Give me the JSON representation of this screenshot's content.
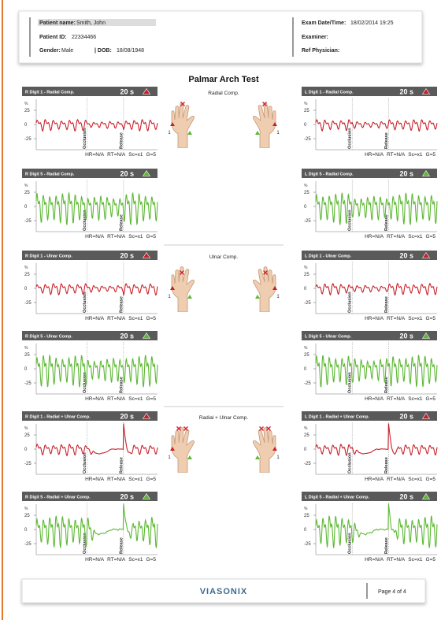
{
  "header": {
    "patient_name_label": "Patient name:",
    "patient_name": "Smith, John",
    "patient_id_label": "Patient ID:",
    "patient_id": "22334466",
    "gender_label": "Gender:",
    "gender": "Male",
    "dob_label": "| DOB:",
    "dob": "18/08/1948",
    "exam_label": "Exam Date/Time:",
    "exam": "18/02/2014 19:25",
    "examiner_label": "Examiner:",
    "ref_label": "Ref Physician:"
  },
  "title": "Palmar Arch Test",
  "panel_common": {
    "duration": "20 s",
    "unit": "%",
    "yticks": [
      25,
      0,
      -25
    ],
    "occlusion": "Occlusion",
    "release": "Release",
    "hr": "HR=N/A",
    "rt": "RT=N/A",
    "sc": "Sc=x1",
    "g": "G=5"
  },
  "compressions": [
    {
      "label": "Radial Comp.",
      "digit": "1"
    },
    {
      "label": "Ulnar Comp.",
      "digit": "1"
    },
    {
      "label": "Radial + Ulnar Comp.",
      "digit": "1"
    }
  ],
  "panels": [
    {
      "title": "R Digit 1 - Radial Comp.",
      "color": "#c8202a"
    },
    {
      "title": "L Digit 1 - Radial Comp.",
      "color": "#c8202a"
    },
    {
      "title": "R Digit 5 - Radial Comp.",
      "color": "#5cb833"
    },
    {
      "title": "L Digit 5 - Radial Comp.",
      "color": "#5cb833"
    },
    {
      "title": "R Digit 1 - Ulnar Comp.",
      "color": "#c8202a"
    },
    {
      "title": "L Digit 1 - Ulnar Comp.",
      "color": "#c8202a"
    },
    {
      "title": "R Digit 5 - Ulnar Comp.",
      "color": "#5cb833"
    },
    {
      "title": "L Digit 5 - Ulnar Comp.",
      "color": "#5cb833"
    },
    {
      "title": "R Digit 1 - Radial + Ulnar Comp.",
      "color": "#c8202a"
    },
    {
      "title": "L Digit 1 - Radial + Ulnar Comp.",
      "color": "#c8202a"
    },
    {
      "title": "R Digit 5 - Radial + Ulnar Comp.",
      "color": "#5cb833"
    },
    {
      "title": "L Digit 5 - Radial + Ulnar Comp.",
      "color": "#5cb833"
    }
  ],
  "footer": {
    "brand": "VIASONIX",
    "page": "Page 4 of 4"
  }
}
